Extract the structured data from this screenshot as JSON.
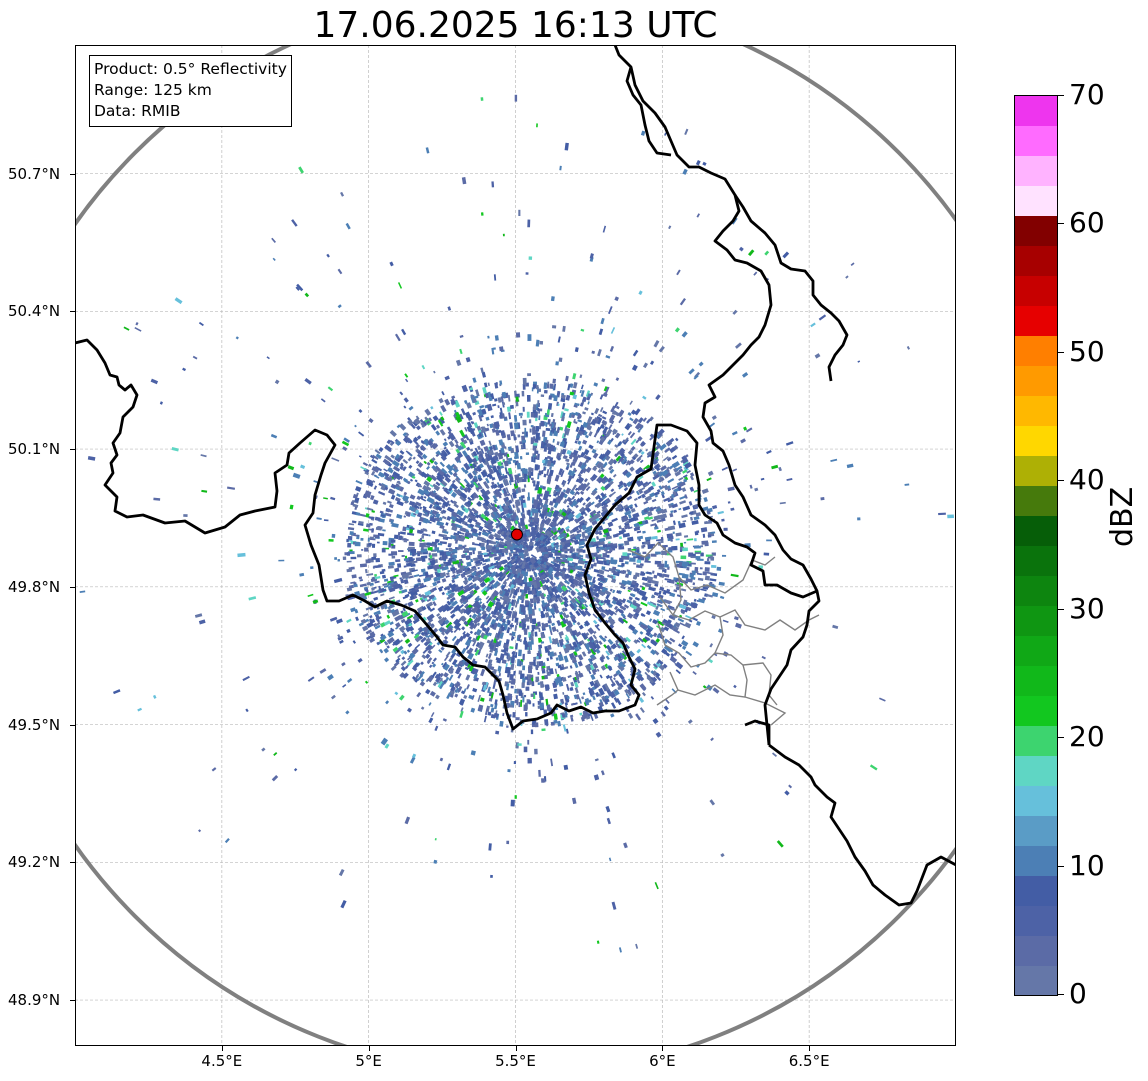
{
  "title": "17.06.2025 16:13 UTC",
  "info_box": {
    "product": "Product: 0.5° Reflectivity",
    "range": "Range: 125 km",
    "data": "Data: RMIB"
  },
  "axes": {
    "lon_range": [
      4.0,
      7.0
    ],
    "lat_range": [
      48.8,
      50.98
    ],
    "x_ticks": [
      {
        "value": 4.5,
        "label": "4.5°E"
      },
      {
        "value": 5.0,
        "label": "5°E"
      },
      {
        "value": 5.5,
        "label": "5.5°E"
      },
      {
        "value": 6.0,
        "label": "6°E"
      },
      {
        "value": 6.5,
        "label": "6.5°E"
      }
    ],
    "y_ticks": [
      {
        "value": 48.9,
        "label": "48.9°N"
      },
      {
        "value": 49.2,
        "label": "49.2°N"
      },
      {
        "value": 49.5,
        "label": "49.5°N"
      },
      {
        "value": 49.8,
        "label": "49.8°N"
      },
      {
        "value": 50.1,
        "label": "50.1°N"
      },
      {
        "value": 50.4,
        "label": "50.4°N"
      },
      {
        "value": 50.7,
        "label": "50.7°N"
      }
    ],
    "grid": true
  },
  "radar": {
    "site_lon": 5.505,
    "site_lat": 49.914,
    "site_color": "#e00000",
    "range_ring_color": "#808080"
  },
  "colorbar": {
    "label": "dBZ",
    "min": 0,
    "max": 70,
    "tick_labels": [
      "0",
      "10",
      "20",
      "30",
      "40",
      "50",
      "60",
      "70"
    ],
    "colors": [
      "#6577a8",
      "#5b6ba6",
      "#4d62a6",
      "#435da5",
      "#4c7fb5",
      "#5a9cc6",
      "#66c0db",
      "#5fd6c4",
      "#3dd46f",
      "#12c71f",
      "#11b81a",
      "#10a816",
      "#0f9612",
      "#0d850f",
      "#0a730c",
      "#065e08",
      "#467a0c",
      "#aeb005",
      "#ffd700",
      "#ffb800",
      "#ff9a00",
      "#ff7f00",
      "#e60000",
      "#c70000",
      "#a70000",
      "#820000",
      "#ffe2ff",
      "#ffb3ff",
      "#ff6bff",
      "#ee35ee"
    ]
  },
  "colors": {
    "border": "#000000",
    "province_border": "#808080",
    "grid": "#bbbbbb"
  }
}
